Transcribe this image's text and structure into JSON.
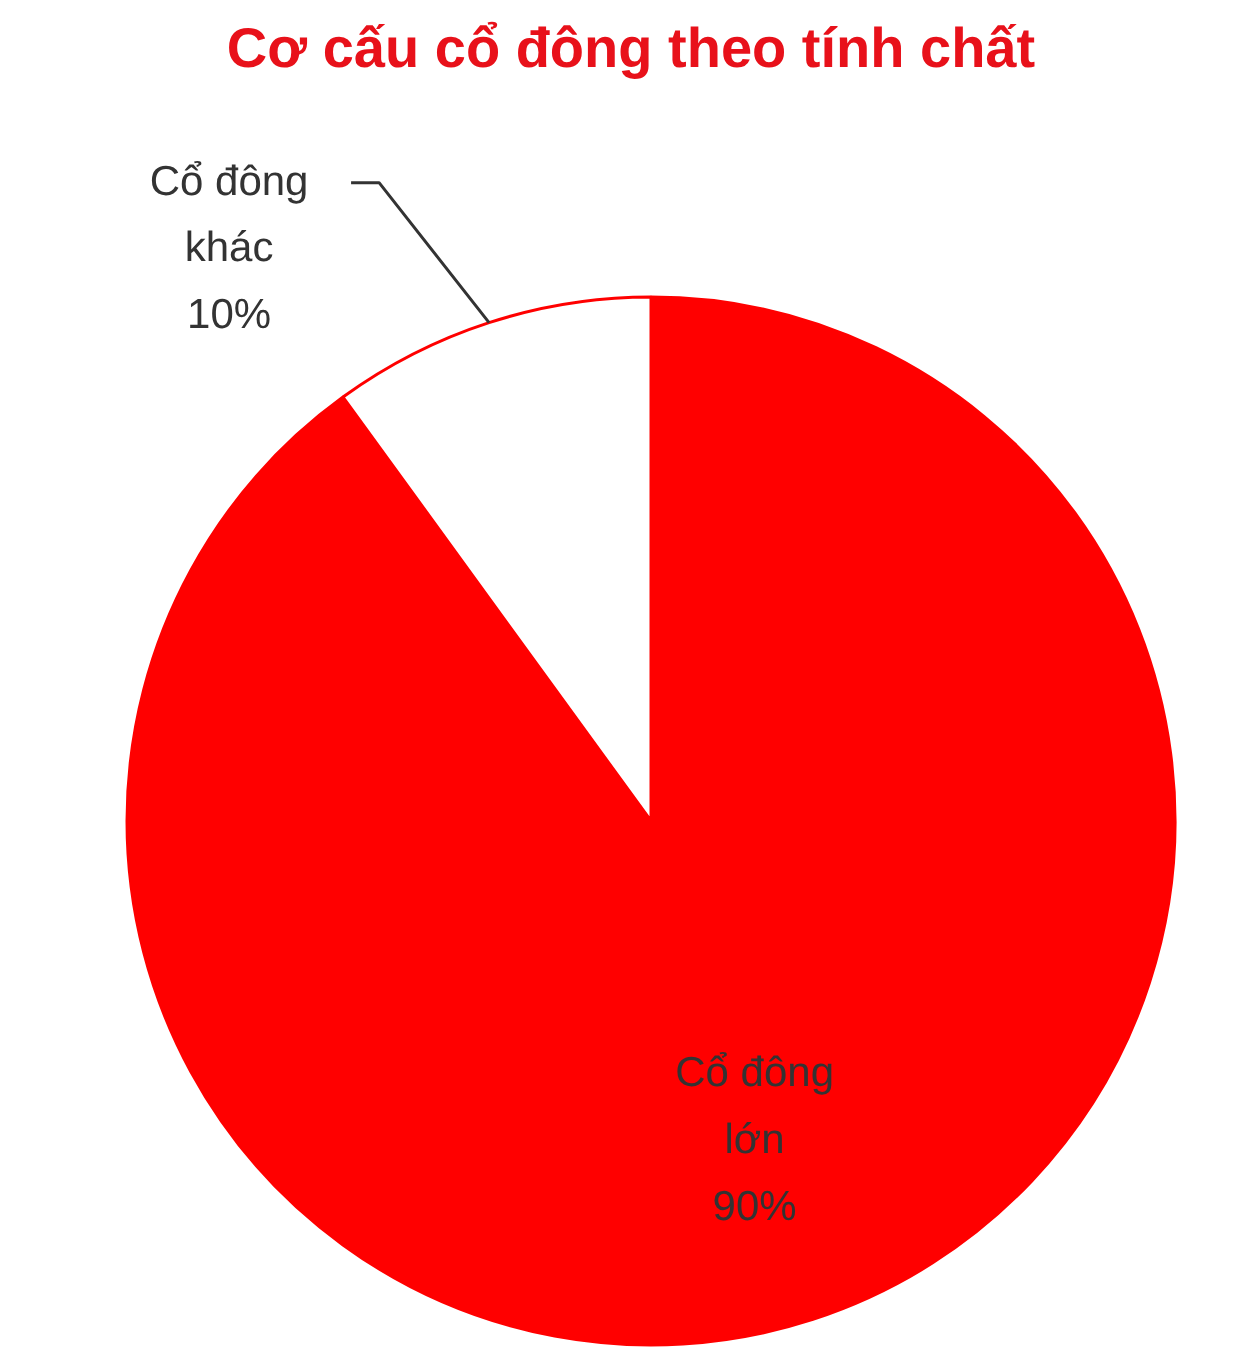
{
  "chart_data": {
    "type": "pie",
    "title": "Cơ cấu cổ đông theo tính chất",
    "categories": [
      "Cổ đông lớn",
      "Cổ đông khác"
    ],
    "values": [
      90,
      10
    ],
    "colors": [
      "#ff0000",
      "#ffffff"
    ],
    "value_labels": [
      "90%",
      "10%"
    ]
  }
}
